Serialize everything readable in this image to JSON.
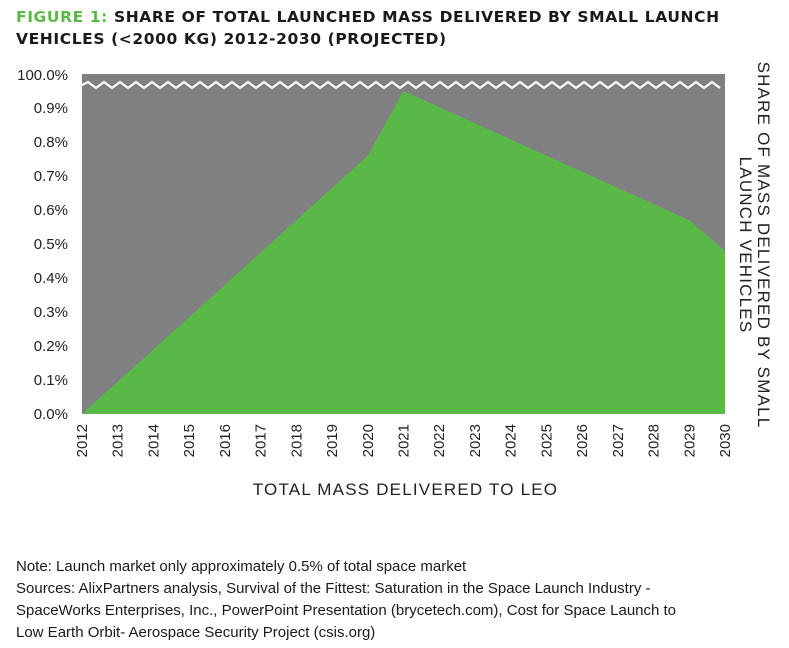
{
  "title": {
    "lead": "FIGURE 1:",
    "text": "SHARE OF TOTAL LAUNCHED MASS DELIVERED BY SMALL LAUNCH VEHICLES (<2000 KG) 2012-2030 (PROJECTED)"
  },
  "colors": {
    "accent": "#5ab946",
    "area_fill": "#5ab946",
    "background_area": "#808083",
    "axis_break_line": "#ffffff"
  },
  "chart_data": {
    "type": "area",
    "xlabel": "TOTAL MASS DELIVERED TO LEO",
    "ylabel_lines": [
      "SHARE OF MASS DELIVERED BY SMALL",
      "LAUNCH VEHICLES"
    ],
    "categories": [
      "2012",
      "2013",
      "2014",
      "2015",
      "2016",
      "2017",
      "2018",
      "2019",
      "2020",
      "2021",
      "2022",
      "2023",
      "2024",
      "2025",
      "2026",
      "2027",
      "2028",
      "2029",
      "2030"
    ],
    "y_ticks": [
      0,
      0.1,
      0.2,
      0.3,
      0.4,
      0.5,
      0.6,
      0.7,
      0.8,
      0.9,
      1.0
    ],
    "y_tick_labels": [
      "0.0%",
      "0.1%",
      "0.2%",
      "0.3%",
      "0.4%",
      "0.5%",
      "0.6%",
      "0.7%",
      "0.8%",
      "0.9%",
      "100.0%"
    ],
    "ylim": [
      0,
      1.0
    ],
    "axis_break": "between 0.9% and 100.0%",
    "series": [
      {
        "name": "Small launch vehicles share",
        "x": [
          2012,
          2020,
          2021,
          2029,
          2030
        ],
        "values": [
          0.0,
          0.76,
          0.95,
          0.57,
          0.48
        ]
      },
      {
        "name": "Total",
        "x": [
          2012,
          2030
        ],
        "values": [
          1.0,
          1.0
        ]
      }
    ],
    "grid": false,
    "legend": "none"
  },
  "notes": {
    "note": "Note: Launch market only approximately 0.5% of total space market",
    "sources_1": "Sources: AlixPartners analysis, Survival of the Fittest: Saturation in the Space Launch Industry -",
    "sources_2": "SpaceWorks Enterprises, Inc., PowerPoint Presentation (brycetech.com), Cost for Space Launch to",
    "sources_3": "Low Earth Orbit- Aerospace Security Project (csis.org)"
  }
}
